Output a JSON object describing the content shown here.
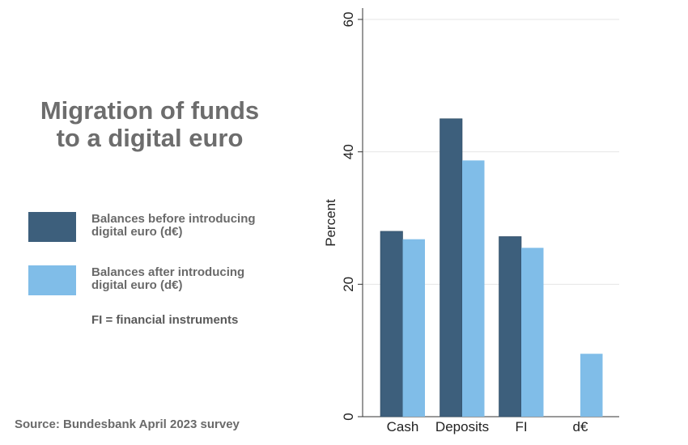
{
  "infographic": {
    "title_lines": [
      "Migration of funds",
      "to a digital euro"
    ],
    "legend": [
      {
        "lines": [
          "Balances before introducing",
          "digital euro (d€)"
        ],
        "color": "#3d5f7c"
      },
      {
        "lines": [
          "Balances after introducing",
          "digital euro (d€)"
        ],
        "color": "#80bde8"
      }
    ],
    "note": "FI = financial instruments",
    "source": "Source: Bundesbank April 2023 survey"
  },
  "chart_data": {
    "type": "bar",
    "categories": [
      "Cash",
      "Deposits",
      "FI",
      "d€"
    ],
    "series": [
      {
        "values": [
          28,
          45,
          27.2,
          null
        ],
        "color": "#3d5f7c"
      },
      {
        "values": [
          26.8,
          38.7,
          25.5,
          9.5
        ],
        "color": "#80bde8"
      }
    ],
    "ylabel": "Percent",
    "ylim": [
      0,
      60
    ],
    "yticks": [
      0,
      20,
      40,
      60
    ],
    "grid": true
  }
}
